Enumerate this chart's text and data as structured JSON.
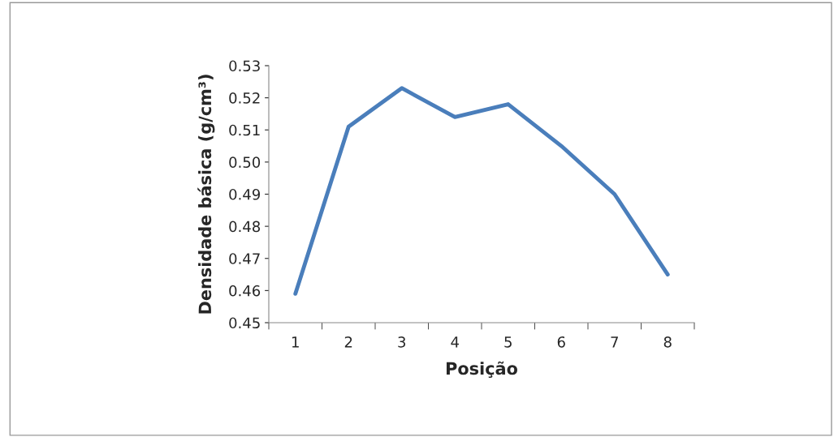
{
  "chart_data": {
    "type": "line",
    "xlabel": "Posição",
    "ylabel": "Densidade básica (g/cm³)",
    "categories": [
      "1",
      "2",
      "3",
      "4",
      "5",
      "6",
      "7",
      "8"
    ],
    "series": [
      {
        "color": "#4a7ebb",
        "values": [
          0.459,
          0.511,
          0.523,
          0.514,
          0.518,
          0.505,
          0.49,
          0.465
        ]
      }
    ],
    "ylim": [
      0.45,
      0.53
    ],
    "yticks": [
      0.45,
      {
        "value": 0.46,
        "label": "0.46"
      },
      {
        "value": 0.47,
        "label": "0.47"
      },
      {
        "value": 0.48,
        "label": "0.48"
      },
      {
        "value": 0.49,
        "label": "0.49"
      },
      {
        "value": 0.5,
        "label": "0.50"
      },
      {
        "value": 0.51,
        "label": "0.51"
      },
      {
        "value": 0.52,
        "label": "0.52"
      },
      0.53
    ],
    "grid": false,
    "legend": false,
    "marker": "none",
    "line_style": "solid"
  }
}
